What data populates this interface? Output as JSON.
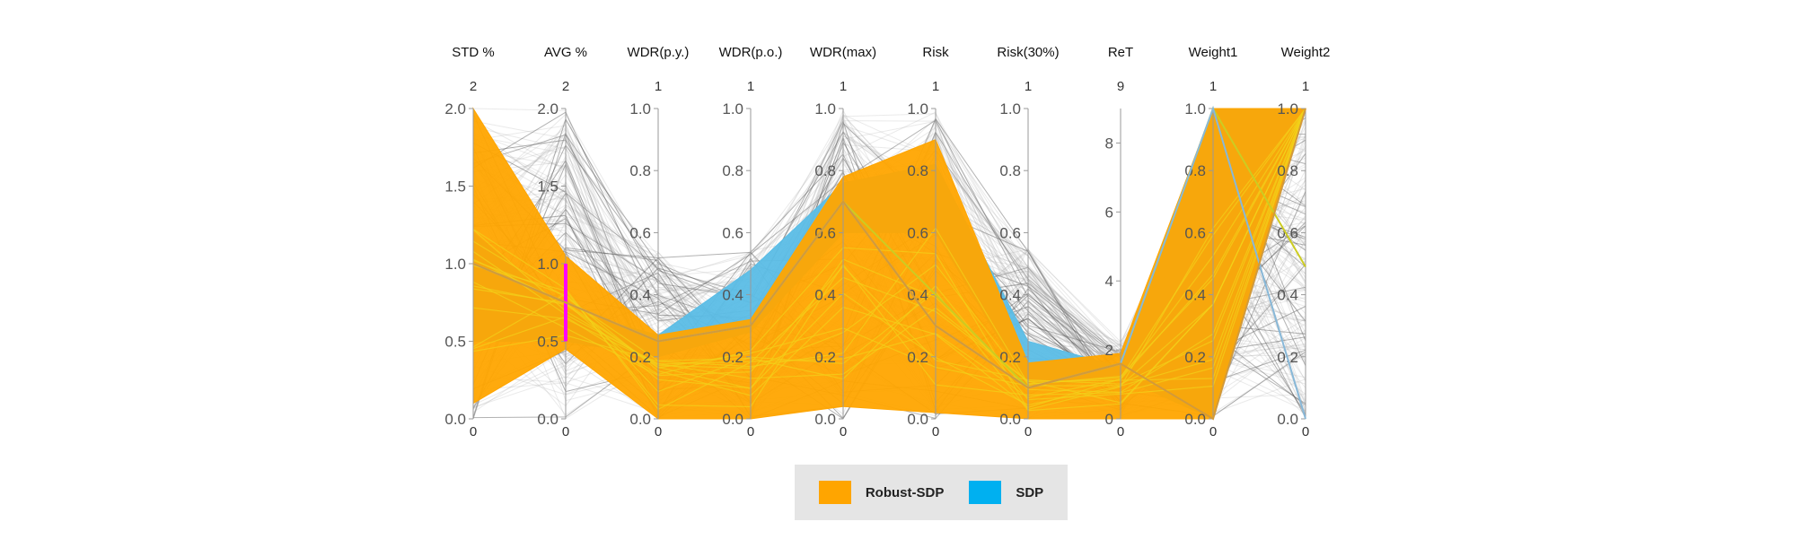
{
  "chart_data": {
    "type": "parallel-coordinates",
    "axes": [
      {
        "name": "STD %",
        "max_label": "2",
        "min_label": "0",
        "ticks": [
          0.0,
          0.5,
          1.0,
          1.5,
          2.0
        ],
        "tick_labels": [
          "0.0",
          "0.5",
          "1.0",
          "1.5",
          "2.0"
        ],
        "range": [
          0,
          2
        ]
      },
      {
        "name": "AVG %",
        "max_label": "2",
        "min_label": "0",
        "ticks": [
          0.0,
          0.5,
          1.0,
          1.5,
          2.0
        ],
        "tick_labels": [
          "0.0",
          "0.5",
          "1.0",
          "1.5",
          "2.0"
        ],
        "range": [
          0,
          2
        ],
        "brush": [
          0.5,
          1.0
        ]
      },
      {
        "name": "WDR(p.y.)",
        "max_label": "1",
        "min_label": "0",
        "ticks": [
          0.0,
          0.2,
          0.4,
          0.6,
          0.8,
          1.0
        ],
        "tick_labels": [
          "0.0",
          "0.2",
          "0.4",
          "0.6",
          "0.8",
          "1.0"
        ],
        "range": [
          0,
          1
        ]
      },
      {
        "name": "WDR(p.o.)",
        "max_label": "1",
        "min_label": "0",
        "ticks": [
          0.0,
          0.2,
          0.4,
          0.6,
          0.8,
          1.0
        ],
        "tick_labels": [
          "0.0",
          "0.2",
          "0.4",
          "0.6",
          "0.8",
          "1.0"
        ],
        "range": [
          0,
          1
        ]
      },
      {
        "name": "WDR(max)",
        "max_label": "1",
        "min_label": "0",
        "ticks": [
          0.0,
          0.2,
          0.4,
          0.6,
          0.8,
          1.0
        ],
        "tick_labels": [
          "0.0",
          "0.2",
          "0.4",
          "0.6",
          "0.8",
          "1.0"
        ],
        "range": [
          0,
          1
        ]
      },
      {
        "name": "Risk",
        "max_label": "1",
        "min_label": "0",
        "ticks": [
          0.0,
          0.2,
          0.4,
          0.6,
          0.8,
          1.0
        ],
        "tick_labels": [
          "0.0",
          "0.2",
          "0.4",
          "0.6",
          "0.8",
          "1.0"
        ],
        "range": [
          0,
          1
        ]
      },
      {
        "name": "Risk(30%)",
        "max_label": "1",
        "min_label": "0",
        "ticks": [
          0.0,
          0.2,
          0.4,
          0.6,
          0.8,
          1.0
        ],
        "tick_labels": [
          "0.0",
          "0.2",
          "0.4",
          "0.6",
          "0.8",
          "1.0"
        ],
        "range": [
          0,
          1
        ]
      },
      {
        "name": "ReT",
        "max_label": "9",
        "min_label": "0",
        "ticks": [
          0,
          2,
          4,
          6,
          8
        ],
        "tick_labels": [
          "0",
          "2",
          "4",
          "6",
          "8"
        ],
        "range": [
          0,
          9
        ]
      },
      {
        "name": "Weight1",
        "max_label": "1",
        "min_label": "0",
        "ticks": [
          0.0,
          0.2,
          0.4,
          0.6,
          0.8,
          1.0
        ],
        "tick_labels": [
          "0.0",
          "0.2",
          "0.4",
          "0.6",
          "0.8",
          "1.0"
        ],
        "range": [
          0,
          1
        ]
      },
      {
        "name": "Weight2",
        "max_label": "1",
        "min_label": "0",
        "ticks": [
          0.0,
          0.2,
          0.4,
          0.6,
          0.8,
          1.0
        ],
        "tick_labels": [
          "0.0",
          "0.2",
          "0.4",
          "0.6",
          "0.8",
          "1.0"
        ],
        "range": [
          0,
          1
        ]
      }
    ],
    "bands": [
      {
        "name": "Robust-SDP",
        "color": "#ffa500",
        "upper": [
          2.0,
          1.05,
          0.27,
          0.32,
          0.78,
          0.9,
          0.18,
          1.9,
          1.0,
          1.0
        ],
        "lower": [
          0.1,
          0.45,
          0.0,
          0.0,
          0.04,
          0.02,
          0.0,
          0.0,
          0.0,
          1.0
        ]
      },
      {
        "name": "SDP",
        "color": "#5bbde6",
        "upper": [
          1.2,
          0.7,
          0.27,
          0.48,
          0.76,
          0.82,
          0.25,
          1.5,
          1.0,
          1.0
        ],
        "lower": [
          0.5,
          0.5,
          0.2,
          0.28,
          0.6,
          0.6,
          0.1,
          1.2,
          0.0,
          1.0
        ]
      }
    ],
    "highlighted_lines": [
      {
        "color": "#cccc22",
        "values": [
          1.0,
          0.75,
          0.25,
          0.3,
          0.7,
          0.4,
          0.1,
          1.6,
          1.0,
          0.49
        ]
      },
      {
        "color": "#88b8d8",
        "values": [
          1.0,
          0.75,
          0.25,
          0.3,
          0.7,
          0.3,
          0.1,
          1.6,
          1.0,
          0.0
        ]
      },
      {
        "color": "#d29a3a",
        "values": [
          1.0,
          0.75,
          0.25,
          0.3,
          0.7,
          0.3,
          0.1,
          1.6,
          0.0,
          1.0
        ]
      }
    ],
    "legend": [
      {
        "label": "Robust-SDP",
        "color": "#ffa500"
      },
      {
        "label": "SDP",
        "color": "#00b0f0"
      }
    ],
    "brush_color": "#ff00ff"
  }
}
